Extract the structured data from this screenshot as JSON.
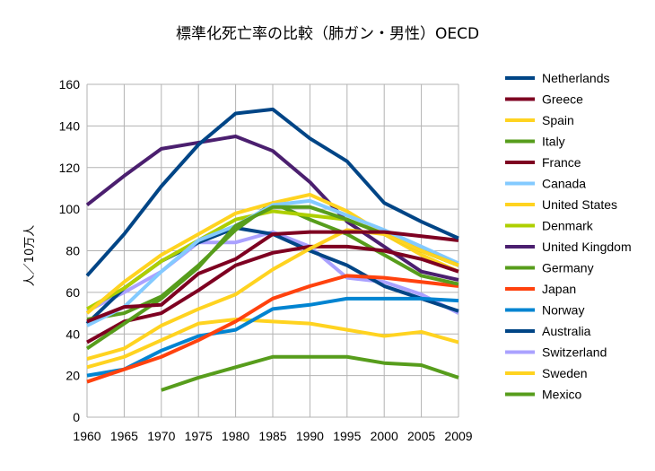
{
  "chart_data": {
    "type": "line",
    "title": "標準化死亡率の比較（肺ガン・男性）OECD",
    "xlabel": "",
    "ylabel": "人／10万人",
    "categories": [
      "1960",
      "1965",
      "1970",
      "1975",
      "1980",
      "1985",
      "1990",
      "1995",
      "2000",
      "2005",
      "2009"
    ],
    "ylim": [
      0,
      160
    ],
    "yticks": [
      0,
      20,
      40,
      60,
      80,
      100,
      120,
      140,
      160
    ],
    "grid": true,
    "legend_position": "right",
    "series": [
      {
        "name": "Netherlands",
        "color": "#004586",
        "values": [
          68,
          88,
          111,
          131,
          146,
          148,
          134,
          123,
          103,
          94,
          86
        ]
      },
      {
        "name": "Greece",
        "color": "#7e0021",
        "values": [
          46,
          53,
          54,
          69,
          76,
          88,
          89,
          89,
          89,
          87,
          85
        ]
      },
      {
        "name": "Spain",
        "color": "#ffd320",
        "values": [
          28,
          33,
          44,
          52,
          59,
          71,
          81,
          90,
          88,
          80,
          73
        ]
      },
      {
        "name": "Italy",
        "color": "#579d1c",
        "values": [
          33,
          45,
          57,
          72,
          92,
          101,
          101,
          95,
          88,
          80,
          73
        ]
      },
      {
        "name": "France",
        "color": "#7e0021",
        "values": [
          36,
          46,
          50,
          61,
          73,
          79,
          82,
          82,
          80,
          76,
          70
        ]
      },
      {
        "name": "Canada",
        "color": "#83caff",
        "values": [
          44,
          53,
          70,
          85,
          92,
          102,
          104,
          97,
          90,
          82,
          74
        ]
      },
      {
        "name": "United States",
        "color": "#ffd320",
        "values": [
          50,
          65,
          78,
          88,
          98,
          103,
          107,
          99,
          88,
          78,
          70
        ]
      },
      {
        "name": "Denmark",
        "color": "#aecf00",
        "values": [
          52,
          62,
          75,
          85,
          95,
          99,
          97,
          95,
          88,
          80,
          73
        ]
      },
      {
        "name": "United Kingdom",
        "color": "#4b1f6f",
        "values": [
          102,
          116,
          129,
          132,
          135,
          128,
          113,
          94,
          82,
          70,
          66
        ]
      },
      {
        "name": "Germany",
        "color": "#579d1c",
        "values": [
          47,
          50,
          58,
          73,
          90,
          103,
          95,
          88,
          78,
          68,
          64
        ]
      },
      {
        "name": "Japan",
        "color": "#ff420e",
        "values": [
          17,
          23,
          29,
          37,
          46,
          57,
          63,
          68,
          67,
          65,
          63
        ]
      },
      {
        "name": "Norway",
        "color": "#0084d1",
        "values": [
          20,
          23,
          32,
          39,
          42,
          52,
          54,
          57,
          57,
          57,
          56
        ]
      },
      {
        "name": "Australia",
        "color": "#004586",
        "values": [
          45,
          62,
          75,
          84,
          91,
          88,
          80,
          73,
          63,
          57,
          51
        ]
      },
      {
        "name": "Switzerland",
        "color": "#aaa1ff",
        "values": [
          51,
          60,
          70,
          84,
          84,
          89,
          82,
          67,
          65,
          59,
          50
        ]
      },
      {
        "name": "Sweden",
        "color": "#ffd320",
        "values": [
          24,
          29,
          37,
          45,
          47,
          46,
          45,
          42,
          39,
          41,
          36
        ]
      },
      {
        "name": "Mexico",
        "color": "#579d1c",
        "values": [
          null,
          null,
          13,
          19,
          24,
          29,
          29,
          29,
          26,
          25,
          19
        ]
      }
    ]
  }
}
